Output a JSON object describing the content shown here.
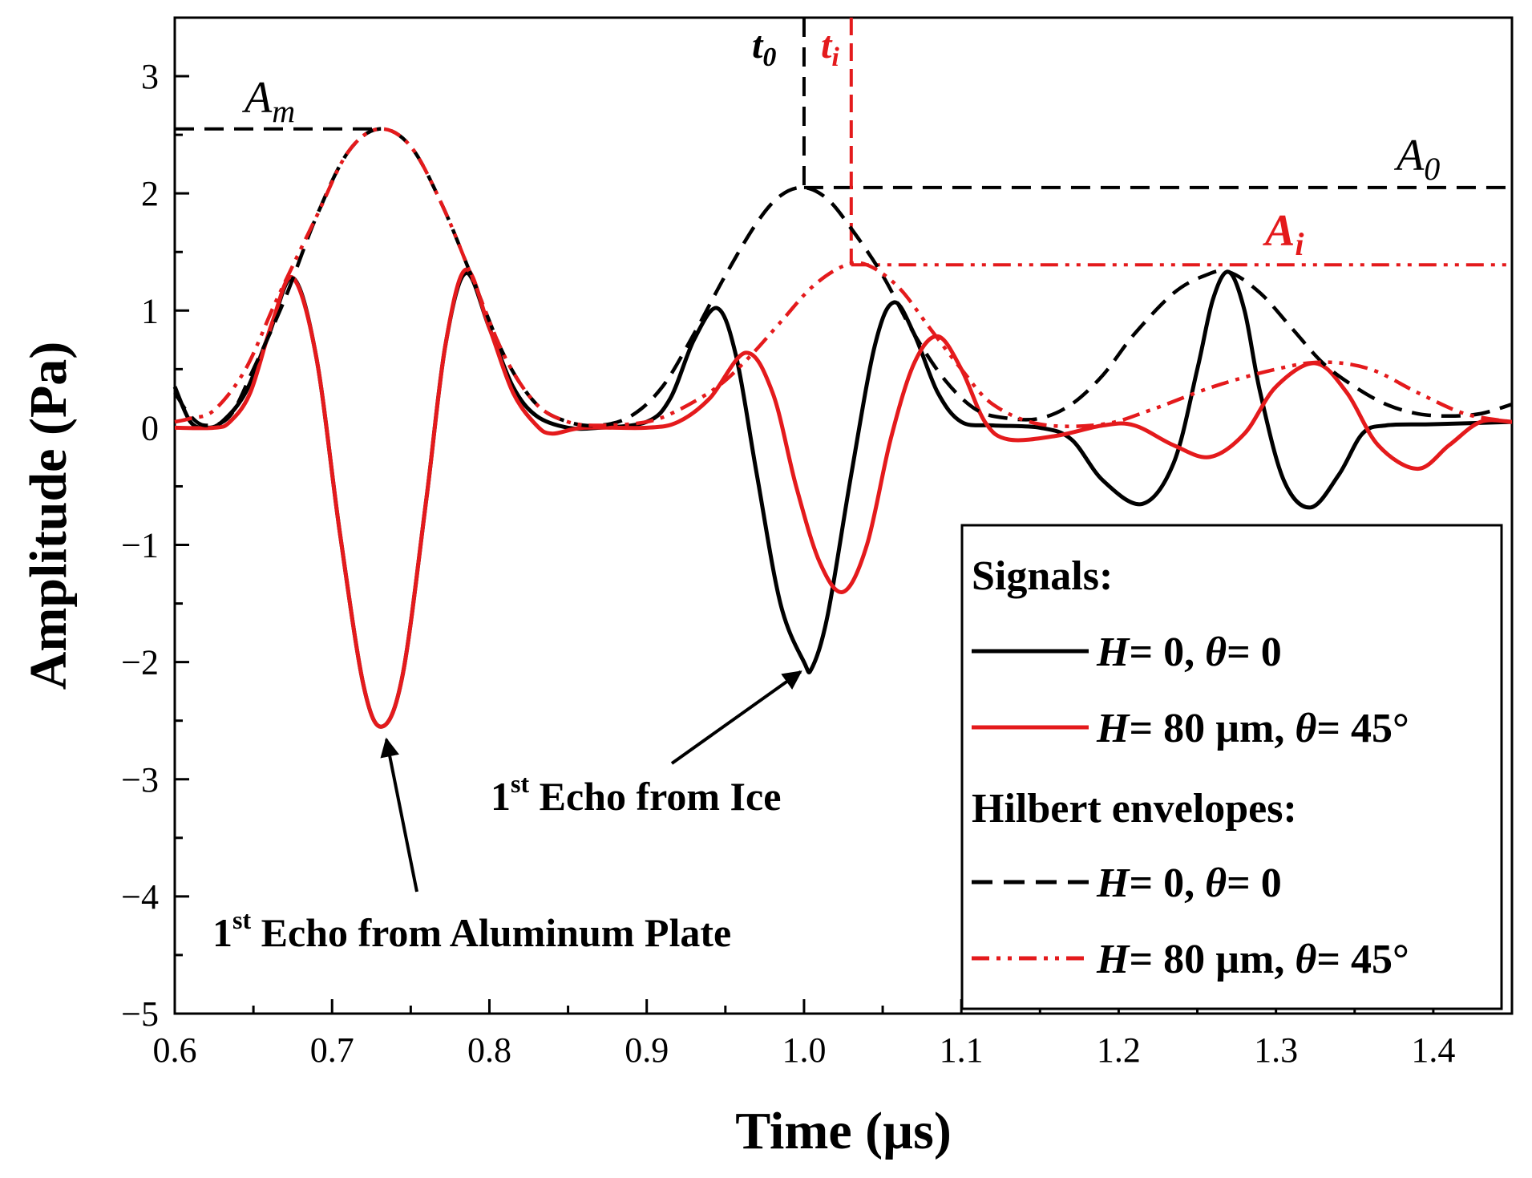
{
  "chart_data": {
    "type": "line",
    "title": "",
    "xlabel": "Time (µs)",
    "ylabel": "Amplitude (Pa)",
    "xlim": [
      0.6,
      1.45
    ],
    "ylim": [
      -5,
      3.5
    ],
    "xticks": [
      0.6,
      0.7,
      0.8,
      0.9,
      1.0,
      1.1,
      1.2,
      1.3,
      1.4
    ],
    "xtick_labels": [
      "0.6",
      "0.7",
      "0.8",
      "0.9",
      "1.0",
      "1.1",
      "1.2",
      "1.3",
      "1.4"
    ],
    "yticks": [
      3,
      2,
      1,
      0,
      -1,
      -2,
      -3,
      -4,
      -5
    ],
    "ytick_labels": [
      "3",
      "2",
      "1",
      "0",
      "−1",
      "−2",
      "−3",
      "−4",
      "−5"
    ],
    "legend": {
      "position": "bottom-right",
      "signals_heading": "Signals:",
      "envelopes_heading": "Hilbert envelopes:",
      "entries": [
        {
          "H_var": "H",
          "H_text": "= 0, ",
          "theta_var": "θ",
          "theta_text": "= 0",
          "style": "solid",
          "color": "#000000"
        },
        {
          "H_var": "H",
          "H_text": "= 80 µm, ",
          "theta_var": "θ",
          "theta_text": "= 45°",
          "style": "solid",
          "color": "#e41a1c"
        },
        {
          "H_var": "H",
          "H_text": "= 0, ",
          "theta_var": "θ",
          "theta_text": "= 0",
          "style": "dashed",
          "color": "#000000"
        },
        {
          "H_var": "H",
          "H_text": "= 80 µm, ",
          "theta_var": "θ",
          "theta_text": "= 45°",
          "style": "dashdotdot",
          "color": "#e41a1c"
        }
      ]
    },
    "series": [
      {
        "name": "Signal H= 0, θ= 0",
        "style": "solid",
        "color": "#000000",
        "points": [
          [
            0.6,
            0.35
          ],
          [
            0.61,
            0.05
          ],
          [
            0.62,
            0.0
          ],
          [
            0.63,
            0.05
          ],
          [
            0.645,
            0.3
          ],
          [
            0.66,
            0.8
          ],
          [
            0.675,
            1.28
          ],
          [
            0.69,
            0.6
          ],
          [
            0.705,
            -0.9
          ],
          [
            0.72,
            -2.2
          ],
          [
            0.732,
            -2.55
          ],
          [
            0.745,
            -2.1
          ],
          [
            0.76,
            -0.6
          ],
          [
            0.772,
            0.7
          ],
          [
            0.785,
            1.32
          ],
          [
            0.8,
            0.85
          ],
          [
            0.815,
            0.35
          ],
          [
            0.83,
            0.1
          ],
          [
            0.85,
            0.0
          ],
          [
            0.87,
            0.0
          ],
          [
            0.9,
            0.05
          ],
          [
            0.915,
            0.25
          ],
          [
            0.93,
            0.75
          ],
          [
            0.945,
            1.02
          ],
          [
            0.957,
            0.6
          ],
          [
            0.97,
            -0.4
          ],
          [
            0.985,
            -1.5
          ],
          [
            1.0,
            -2.0
          ],
          [
            1.005,
            -2.05
          ],
          [
            1.015,
            -1.6
          ],
          [
            1.03,
            -0.4
          ],
          [
            1.045,
            0.7
          ],
          [
            1.057,
            1.07
          ],
          [
            1.07,
            0.8
          ],
          [
            1.085,
            0.3
          ],
          [
            1.1,
            0.05
          ],
          [
            1.12,
            0.02
          ],
          [
            1.15,
            0.0
          ],
          [
            1.17,
            -0.1
          ],
          [
            1.19,
            -0.45
          ],
          [
            1.215,
            -0.65
          ],
          [
            1.235,
            -0.3
          ],
          [
            1.25,
            0.5
          ],
          [
            1.26,
            1.1
          ],
          [
            1.27,
            1.33
          ],
          [
            1.28,
            1.0
          ],
          [
            1.29,
            0.3
          ],
          [
            1.305,
            -0.45
          ],
          [
            1.322,
            -0.68
          ],
          [
            1.34,
            -0.4
          ],
          [
            1.355,
            -0.05
          ],
          [
            1.37,
            0.02
          ],
          [
            1.4,
            0.03
          ],
          [
            1.45,
            0.05
          ]
        ]
      },
      {
        "name": "Signal H= 80 µm, θ= 45°",
        "style": "solid",
        "color": "#e41a1c",
        "points": [
          [
            0.6,
            0.0
          ],
          [
            0.625,
            0.0
          ],
          [
            0.635,
            0.05
          ],
          [
            0.648,
            0.3
          ],
          [
            0.662,
            0.9
          ],
          [
            0.675,
            1.28
          ],
          [
            0.69,
            0.6
          ],
          [
            0.705,
            -0.9
          ],
          [
            0.72,
            -2.2
          ],
          [
            0.732,
            -2.55
          ],
          [
            0.745,
            -2.1
          ],
          [
            0.76,
            -0.6
          ],
          [
            0.772,
            0.7
          ],
          [
            0.785,
            1.35
          ],
          [
            0.8,
            0.85
          ],
          [
            0.815,
            0.3
          ],
          [
            0.83,
            0.02
          ],
          [
            0.84,
            -0.05
          ],
          [
            0.86,
            0.0
          ],
          [
            0.9,
            0.0
          ],
          [
            0.92,
            0.05
          ],
          [
            0.94,
            0.25
          ],
          [
            0.963,
            0.64
          ],
          [
            0.98,
            0.3
          ],
          [
            0.995,
            -0.5
          ],
          [
            1.01,
            -1.15
          ],
          [
            1.025,
            -1.4
          ],
          [
            1.04,
            -1.0
          ],
          [
            1.055,
            -0.1
          ],
          [
            1.07,
            0.55
          ],
          [
            1.085,
            0.78
          ],
          [
            1.1,
            0.5
          ],
          [
            1.115,
            0.05
          ],
          [
            1.13,
            -0.1
          ],
          [
            1.16,
            -0.07
          ],
          [
            1.19,
            0.02
          ],
          [
            1.21,
            0.02
          ],
          [
            1.235,
            -0.15
          ],
          [
            1.258,
            -0.25
          ],
          [
            1.28,
            -0.05
          ],
          [
            1.3,
            0.35
          ],
          [
            1.325,
            0.55
          ],
          [
            1.345,
            0.3
          ],
          [
            1.365,
            -0.15
          ],
          [
            1.39,
            -0.35
          ],
          [
            1.41,
            -0.15
          ],
          [
            1.43,
            0.05
          ],
          [
            1.45,
            0.05
          ]
        ]
      },
      {
        "name": "Envelope H= 0, θ= 0",
        "style": "dashed",
        "color": "#000000",
        "points": [
          [
            0.6,
            0.3
          ],
          [
            0.61,
            0.1
          ],
          [
            0.62,
            0.02
          ],
          [
            0.635,
            0.1
          ],
          [
            0.65,
            0.5
          ],
          [
            0.67,
            1.1
          ],
          [
            0.69,
            1.8
          ],
          [
            0.71,
            2.35
          ],
          [
            0.73,
            2.55
          ],
          [
            0.75,
            2.4
          ],
          [
            0.77,
            1.9
          ],
          [
            0.79,
            1.25
          ],
          [
            0.81,
            0.6
          ],
          [
            0.83,
            0.2
          ],
          [
            0.85,
            0.05
          ],
          [
            0.87,
            0.02
          ],
          [
            0.89,
            0.1
          ],
          [
            0.91,
            0.35
          ],
          [
            0.93,
            0.8
          ],
          [
            0.95,
            1.3
          ],
          [
            0.97,
            1.75
          ],
          [
            0.985,
            1.98
          ],
          [
            1.0,
            2.05
          ],
          [
            1.015,
            1.95
          ],
          [
            1.03,
            1.7
          ],
          [
            1.05,
            1.3
          ],
          [
            1.07,
            0.8
          ],
          [
            1.09,
            0.4
          ],
          [
            1.11,
            0.15
          ],
          [
            1.13,
            0.08
          ],
          [
            1.15,
            0.08
          ],
          [
            1.17,
            0.2
          ],
          [
            1.19,
            0.45
          ],
          [
            1.21,
            0.8
          ],
          [
            1.235,
            1.15
          ],
          [
            1.255,
            1.3
          ],
          [
            1.27,
            1.33
          ],
          [
            1.29,
            1.15
          ],
          [
            1.31,
            0.85
          ],
          [
            1.33,
            0.55
          ],
          [
            1.35,
            0.35
          ],
          [
            1.37,
            0.2
          ],
          [
            1.39,
            0.12
          ],
          [
            1.41,
            0.1
          ],
          [
            1.43,
            0.12
          ],
          [
            1.45,
            0.2
          ]
        ]
      },
      {
        "name": "Envelope H= 80 µm, θ= 45°",
        "style": "dashdotdot",
        "color": "#e41a1c",
        "points": [
          [
            0.6,
            0.05
          ],
          [
            0.61,
            0.08
          ],
          [
            0.625,
            0.15
          ],
          [
            0.645,
            0.5
          ],
          [
            0.665,
            1.1
          ],
          [
            0.69,
            1.8
          ],
          [
            0.71,
            2.35
          ],
          [
            0.73,
            2.55
          ],
          [
            0.75,
            2.4
          ],
          [
            0.77,
            1.9
          ],
          [
            0.79,
            1.25
          ],
          [
            0.81,
            0.6
          ],
          [
            0.83,
            0.2
          ],
          [
            0.85,
            0.05
          ],
          [
            0.87,
            0.02
          ],
          [
            0.9,
            0.05
          ],
          [
            0.92,
            0.15
          ],
          [
            0.945,
            0.35
          ],
          [
            0.965,
            0.6
          ],
          [
            0.985,
            0.9
          ],
          [
            1.005,
            1.2
          ],
          [
            1.025,
            1.38
          ],
          [
            1.04,
            1.39
          ],
          [
            1.06,
            1.2
          ],
          [
            1.08,
            0.85
          ],
          [
            1.1,
            0.5
          ],
          [
            1.12,
            0.2
          ],
          [
            1.15,
            0.03
          ],
          [
            1.19,
            0.03
          ],
          [
            1.22,
            0.15
          ],
          [
            1.26,
            0.35
          ],
          [
            1.3,
            0.5
          ],
          [
            1.33,
            0.56
          ],
          [
            1.36,
            0.5
          ],
          [
            1.39,
            0.3
          ],
          [
            1.42,
            0.12
          ],
          [
            1.45,
            0.05
          ]
        ]
      }
    ],
    "reference_lines": {
      "A_m": 2.55,
      "A_0": 2.05,
      "A_i": 1.39,
      "t_0": 1.0,
      "t_i": 1.03
    },
    "annotations": {
      "A_m": {
        "main": "A",
        "sub": "m"
      },
      "A_0": {
        "main": "A",
        "sub": "0"
      },
      "A_i": {
        "main": "A",
        "sub": "i"
      },
      "t_0": {
        "main": "t",
        "sub": "0"
      },
      "t_i": {
        "main": "t",
        "sub": "i"
      },
      "echo_ice": {
        "prefix": "1",
        "sup": "st",
        "text": " Echo from Ice",
        "target": [
          1.005,
          -2.0
        ]
      },
      "echo_plate": {
        "prefix": "1",
        "sup": "st",
        "text": " Echo from Aluminum Plate",
        "target": [
          0.733,
          -2.55
        ]
      }
    },
    "colors": {
      "black": "#000000",
      "red": "#e41a1c"
    }
  }
}
